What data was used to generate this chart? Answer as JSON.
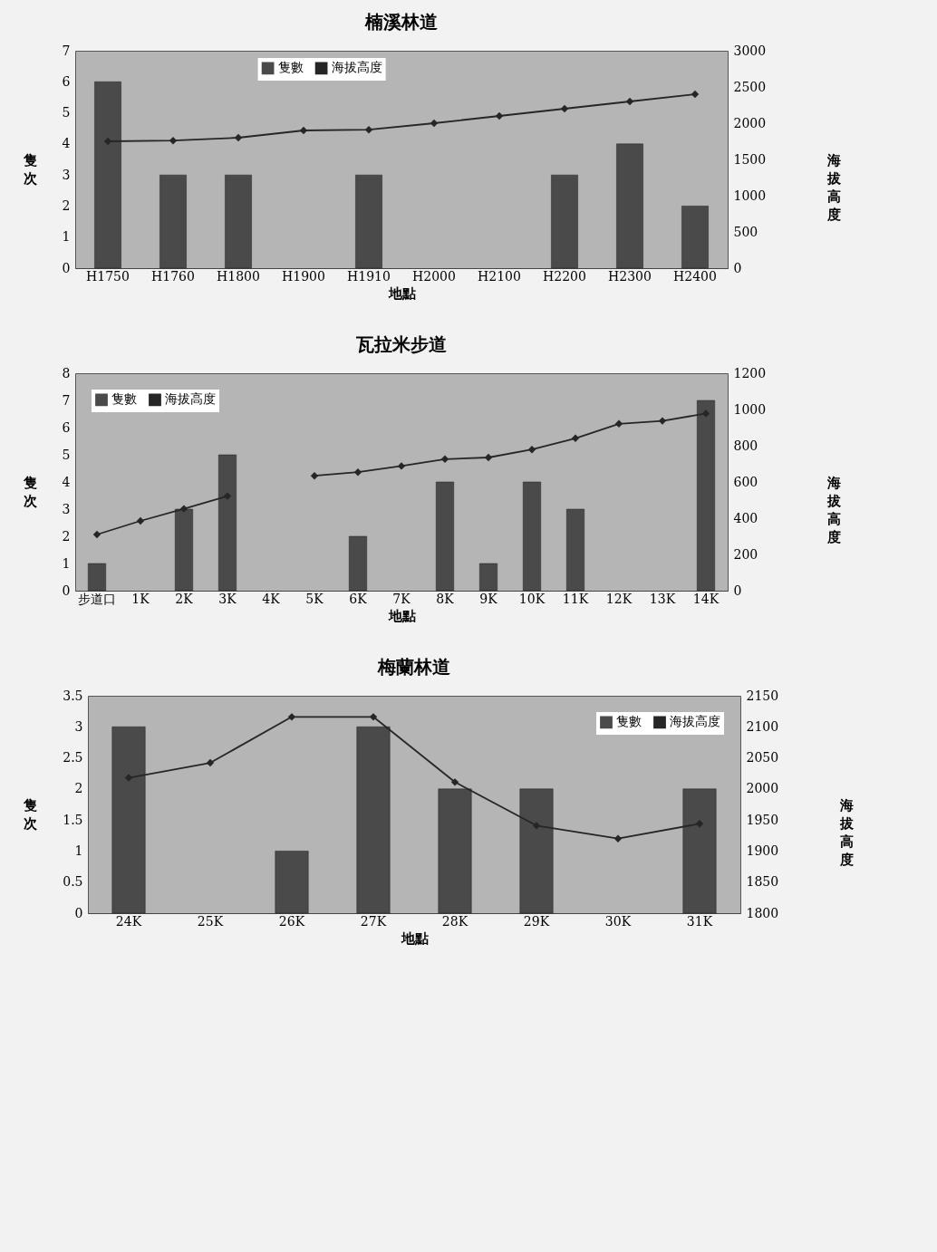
{
  "chart_data": [
    {
      "type": "bar",
      "title": "楠溪林道",
      "xlabel": "地點",
      "ylabel": "隻次",
      "y2label": "海拔高度",
      "legend": "top",
      "marker": "diamond",
      "categories": [
        "H1750",
        "H1760",
        "H1800",
        "H1900",
        "H1910",
        "H2000",
        "H2100",
        "H2200",
        "H2300",
        "H2400"
      ],
      "series": [
        {
          "name": "隻數",
          "color": "#4a4a4a",
          "values": [
            6,
            3,
            3,
            null,
            3,
            null,
            null,
            3,
            4,
            2
          ]
        },
        {
          "name": "海拔高度",
          "type": "line",
          "axis": "y2",
          "color": "#262626",
          "values": [
            1750,
            1760,
            1800,
            1900,
            1910,
            2000,
            2100,
            2200,
            2300,
            2400
          ]
        }
      ],
      "ylim": [
        0,
        7
      ],
      "yticks": [
        0,
        1,
        2,
        3,
        4,
        5,
        6,
        7
      ],
      "y2lim": [
        0,
        3000
      ],
      "y2ticks": [
        0,
        500,
        1000,
        1500,
        2000,
        2500,
        3000
      ]
    },
    {
      "type": "bar",
      "title": "瓦拉米步道",
      "xlabel": "地點",
      "ylabel": "隻次",
      "y2label": "海拔高度",
      "legend": "top left",
      "marker": "diamond",
      "categories": [
        "步道口",
        "1K",
        "2K",
        "3K",
        "4K",
        "5K",
        "6K",
        "7K",
        "8K",
        "9K",
        "10K",
        "11K",
        "12K",
        "13K",
        "14K"
      ],
      "series": [
        {
          "name": "隻數",
          "color": "#4a4a4a",
          "values": [
            1,
            null,
            3,
            5,
            null,
            null,
            2,
            null,
            4,
            1,
            4,
            3,
            null,
            null,
            7
          ]
        },
        {
          "name": "海拔高度",
          "type": "line",
          "axis": "y2",
          "color": "#262626",
          "values": [
            310,
            385,
            452,
            522,
            null,
            634,
            654,
            688,
            726,
            735,
            779,
            841,
            921,
            937,
            978
          ]
        }
      ],
      "ylim": [
        0,
        8
      ],
      "yticks": [
        0,
        1,
        2,
        3,
        4,
        5,
        6,
        7,
        8
      ],
      "y2lim": [
        0,
        1200
      ],
      "y2ticks": [
        0,
        200,
        400,
        600,
        800,
        1000,
        1200
      ]
    },
    {
      "type": "bar",
      "title": "梅蘭林道",
      "xlabel": "地點",
      "ylabel": "隻次",
      "y2label": "海拔高度",
      "legend": "top right",
      "marker": "diamond",
      "categories": [
        "24K",
        "25K",
        "26K",
        "27K",
        "28K",
        "29K",
        "30K",
        "31K"
      ],
      "series": [
        {
          "name": "隻數",
          "color": "#4a4a4a",
          "values": [
            3,
            null,
            1,
            3,
            2,
            2,
            null,
            2
          ]
        },
        {
          "name": "海拔高度",
          "type": "line",
          "axis": "y2",
          "color": "#262626",
          "values": [
            2018,
            2042,
            2116,
            2116,
            2011,
            1941,
            1920,
            1944
          ]
        }
      ],
      "ylim": [
        0,
        3.5
      ],
      "yticks": [
        0,
        0.5,
        1,
        1.5,
        2,
        2.5,
        3,
        3.5
      ],
      "y2lim": [
        1800,
        2150
      ],
      "y2ticks": [
        1800,
        1850,
        1900,
        1950,
        2000,
        2050,
        2100,
        2150
      ]
    }
  ]
}
